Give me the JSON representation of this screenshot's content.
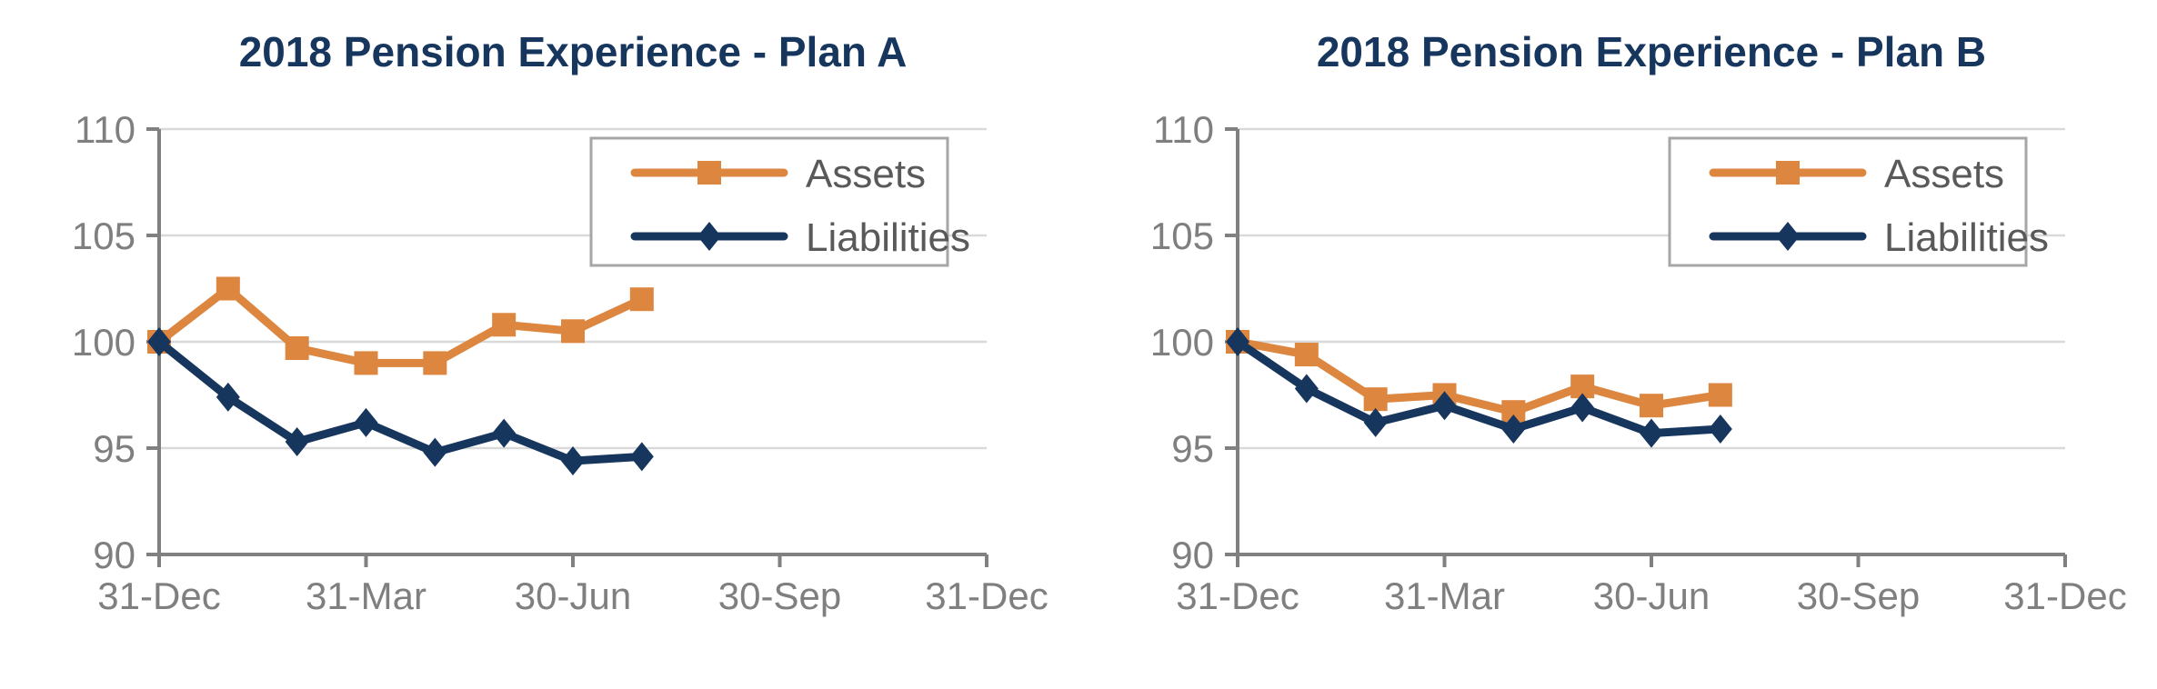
{
  "page": {
    "background": "#FFFFFF"
  },
  "colors": {
    "title_text": "#17365D",
    "assets_series": "#DC8640",
    "liabilities_series": "#17365D",
    "axis_line": "#808080",
    "gridline": "#D9D9D9",
    "tick_label": "#7F7F7F",
    "legend_text": "#595959",
    "legend_border": "#A6A6A6",
    "legend_background": "#FFFFFF"
  },
  "chart_data": [
    {
      "type": "line",
      "title": "2018 Pension Experience - Plan A",
      "grid": "horizontal",
      "y_axis": {
        "range": [
          90,
          110
        ],
        "ticks": [
          90,
          95,
          100,
          105,
          110
        ]
      },
      "x_axis": {
        "range_months": [
          0,
          12
        ],
        "tick_months": [
          0,
          3,
          6,
          9,
          12
        ],
        "tick_labels": [
          "31-Dec",
          "31-Mar",
          "30-Jun",
          "30-Sep",
          "31-Dec"
        ]
      },
      "legend": {
        "position": "top-right",
        "entries": [
          "Assets",
          "Liabilities"
        ]
      },
      "series": [
        {
          "name": "Assets",
          "color": "#DC8640",
          "marker": "square",
          "months": [
            0,
            1,
            2,
            3,
            4,
            5,
            6,
            7
          ],
          "values": [
            100,
            102.5,
            99.7,
            99.0,
            99.0,
            100.8,
            100.5,
            102.0
          ]
        },
        {
          "name": "Liabilities",
          "color": "#17365D",
          "marker": "diamond",
          "months": [
            0,
            1,
            2,
            3,
            4,
            5,
            6,
            7
          ],
          "values": [
            100,
            97.4,
            95.3,
            96.2,
            94.8,
            95.7,
            94.4,
            94.6
          ]
        }
      ]
    },
    {
      "type": "line",
      "title": "2018 Pension Experience - Plan B",
      "grid": "horizontal",
      "y_axis": {
        "range": [
          90,
          110
        ],
        "ticks": [
          90,
          95,
          100,
          105,
          110
        ]
      },
      "x_axis": {
        "range_months": [
          0,
          12
        ],
        "tick_months": [
          0,
          3,
          6,
          9,
          12
        ],
        "tick_labels": [
          "31-Dec",
          "31-Mar",
          "30-Jun",
          "30-Sep",
          "31-Dec"
        ]
      },
      "legend": {
        "position": "top-right",
        "entries": [
          "Assets",
          "Liabilities"
        ]
      },
      "series": [
        {
          "name": "Assets",
          "color": "#DC8640",
          "marker": "square",
          "months": [
            0,
            1,
            2,
            3,
            4,
            5,
            6,
            7
          ],
          "values": [
            100,
            99.4,
            97.3,
            97.5,
            96.7,
            97.9,
            97.0,
            97.5
          ]
        },
        {
          "name": "Liabilities",
          "color": "#17365D",
          "marker": "diamond",
          "months": [
            0,
            1,
            2,
            3,
            4,
            5,
            6,
            7
          ],
          "values": [
            100,
            97.8,
            96.2,
            97.0,
            95.9,
            96.9,
            95.7,
            95.9
          ]
        }
      ]
    }
  ]
}
